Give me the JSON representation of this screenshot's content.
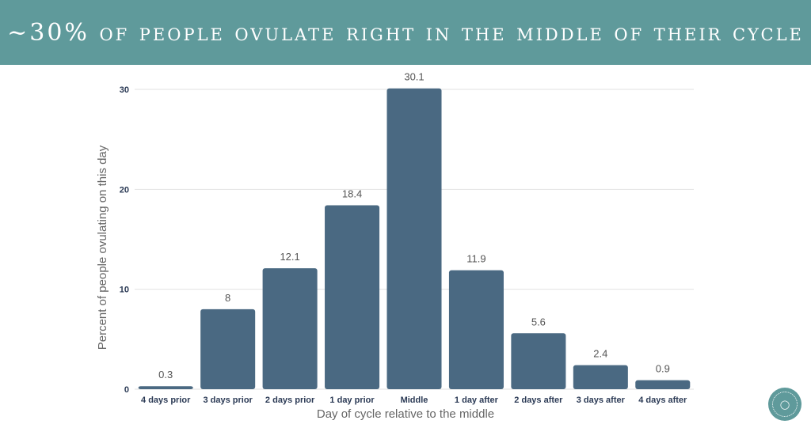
{
  "banner": {
    "title": "~30% of people ovulate right in the middle of their cycle"
  },
  "chart_data": {
    "type": "bar",
    "categories": [
      "4 days prior",
      "3 days prior",
      "2 days prior",
      "1 day prior",
      "Middle",
      "1 day after",
      "2 days after",
      "3 days after",
      "4 days after"
    ],
    "values": [
      0.3,
      8,
      12.1,
      18.4,
      30.1,
      11.9,
      5.6,
      2.4,
      0.9
    ],
    "xlabel": "Day of cycle relative to the middle",
    "ylabel": "Percent of people ovulating on this day",
    "ylim": [
      0,
      30
    ],
    "yticks": [
      0,
      10,
      20,
      30
    ],
    "grid": true,
    "bar_color": "#4a6982"
  },
  "logo": {
    "icon": "lightbulb-glasses-icon"
  }
}
